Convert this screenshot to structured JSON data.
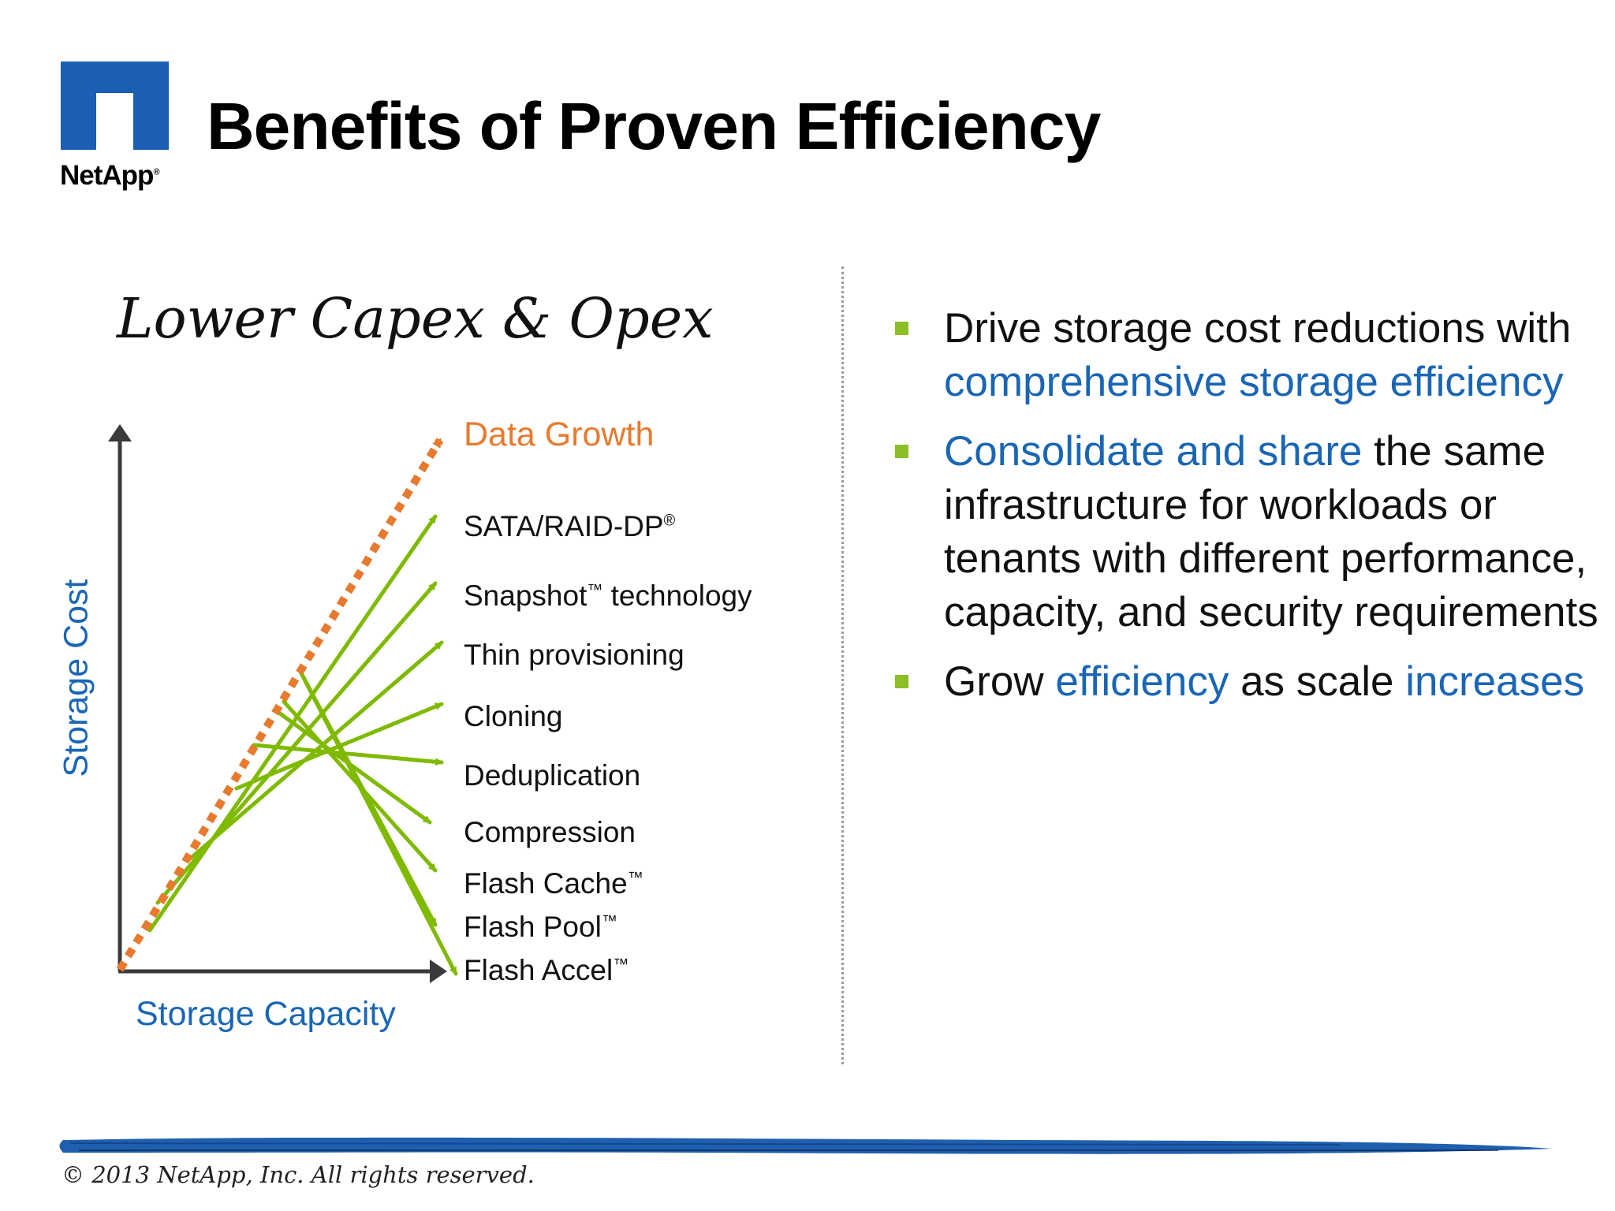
{
  "logo": {
    "name": "NetApp",
    "mark": "®"
  },
  "title": "Benefits of Proven Efficiency",
  "handwritten_heading": "Lower Capex & Opex",
  "chart": {
    "y_axis_label": "Storage Cost",
    "x_axis_label": "Storage Capacity",
    "trend_label": "Data Growth",
    "technologies": [
      {
        "name": "SATA/RAID-DP",
        "mark": "®"
      },
      {
        "name": "Snapshot",
        "mark": "™",
        "suffix": " technology"
      },
      {
        "name": "Thin provisioning",
        "mark": ""
      },
      {
        "name": "Cloning",
        "mark": ""
      },
      {
        "name": "Deduplication",
        "mark": ""
      },
      {
        "name": "Compression",
        "mark": ""
      },
      {
        "name": "Flash Cache",
        "mark": "™"
      },
      {
        "name": "Flash Pool",
        "mark": "™"
      },
      {
        "name": "Flash Accel",
        "mark": "™"
      }
    ],
    "colors": {
      "trend": "#e77a2e",
      "tech_arrows": "#7fba00",
      "axes": "#3a3a3a",
      "axis_labels": "#1a66b5"
    }
  },
  "bullets": [
    {
      "parts": [
        {
          "t": "Drive storage cost reductions with ",
          "hl": false
        },
        {
          "t": "comprehensive storage efficiency",
          "hl": true
        }
      ]
    },
    {
      "parts": [
        {
          "t": "Consolidate and share",
          "hl": true
        },
        {
          "t": " the same infrastructure for workloads or tenants with different performance, capacity, and security requirements",
          "hl": false
        }
      ]
    },
    {
      "parts": [
        {
          "t": "Grow ",
          "hl": false
        },
        {
          "t": "efficiency",
          "hl": true
        },
        {
          "t": " as scale ",
          "hl": false
        },
        {
          "t": "increases",
          "hl": true
        }
      ]
    }
  ],
  "footer": "© 2013 NetApp, Inc. All rights reserved.",
  "colors": {
    "brand_blue": "#1a5fb4",
    "bullet_green": "#8cbf26",
    "highlight_blue": "#1a66b5"
  }
}
